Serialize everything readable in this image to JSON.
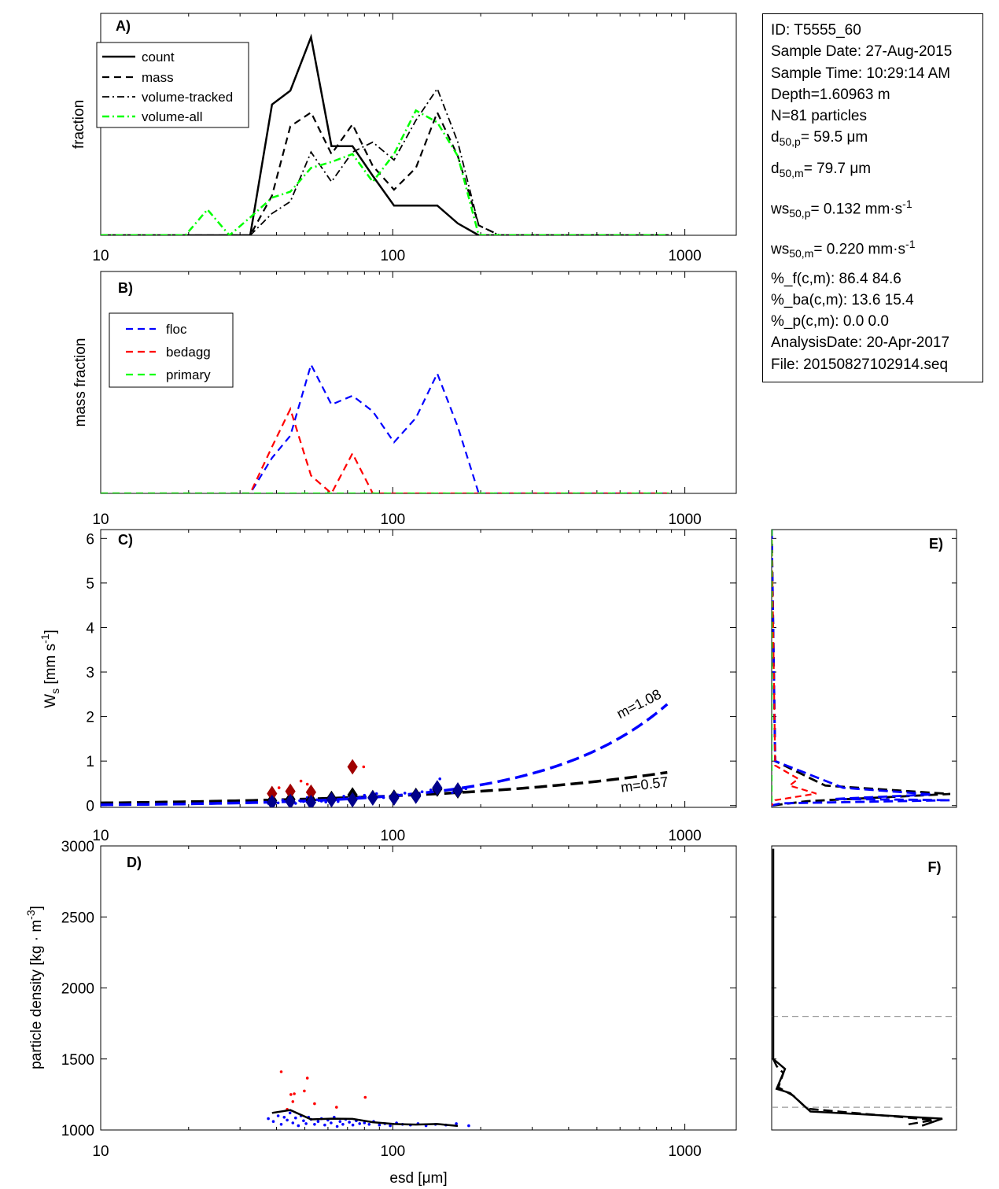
{
  "info": {
    "id": "ID: T5555_60",
    "sample_date": "Sample Date: 27-Aug-2015",
    "sample_time": "Sample Time: 10:29:14 AM",
    "depth": "Depth=1.60963 m",
    "n": "N=81 particles",
    "d50p_label": "d",
    "d50p_sub": "50,p",
    "d50p_value": "=  59.5 μm",
    "d50m_label": "d",
    "d50m_sub": "50,m",
    "d50m_value": "=  79.7 μm",
    "ws50p_label": "ws",
    "ws50p_sub": "50,p",
    "ws50p_value": "= 0.132 mm·s",
    "ws50p_exp": "-1",
    "ws50m_label": "ws",
    "ws50m_sub": "50,m",
    "ws50m_value": "= 0.220 mm·s",
    "ws50m_exp": "-1",
    "pf": "%_f(c,m): 86.4 84.6",
    "pba": "%_ba(c,m): 13.6 15.4",
    "pp": "%_p(c,m): 0.0 0.0",
    "analysis_date": "AnalysisDate: 20-Apr-2017",
    "file": "File: 20150827102914.seq"
  },
  "colors": {
    "count": "#000000",
    "floc": "#0000ff",
    "floc_dark": "#00008b",
    "bedagg": "#ff0000",
    "bedagg_dark": "#a00000",
    "primary": "#00ff00",
    "guide": "#999999"
  },
  "chart_data": [
    {
      "panel": "A)",
      "type": "line",
      "ylabel": "fraction",
      "xscale": "log",
      "xlim": [
        10,
        1500
      ],
      "ylim": [
        0,
        1
      ],
      "xticks": [
        "10",
        "100",
        "1000"
      ],
      "legend": {
        "position": "top-left",
        "entries": [
          "count",
          "mass",
          "volume-tracked",
          "volume-all"
        ]
      },
      "series": [
        {
          "name": "count",
          "style": "solid",
          "x": [
            10,
            19.5,
            23.2,
            27.6,
            32.5,
            38.6,
            44.6,
            52.5,
            61.7,
            72.8,
            85.4,
            101,
            120,
            142,
            167,
            197,
            232,
            880
          ],
          "y": [
            0,
            0,
            0,
            0,
            0,
            0.66,
            0.73,
            1.0,
            0.45,
            0.45,
            0.3,
            0.15,
            0.15,
            0.15,
            0.06,
            0,
            0,
            0
          ]
        },
        {
          "name": "mass",
          "style": "dashed",
          "x": [
            10,
            19.5,
            23.2,
            27.6,
            32.5,
            38.6,
            44.6,
            52.5,
            61.7,
            72.8,
            85.4,
            101,
            120,
            142,
            167,
            197,
            232,
            880
          ],
          "y": [
            0,
            0,
            0,
            0,
            0,
            0.2,
            0.55,
            0.62,
            0.41,
            0.56,
            0.35,
            0.23,
            0.34,
            0.62,
            0.4,
            0.05,
            0,
            0
          ]
        },
        {
          "name": "volume-tracked",
          "style": "dashdot",
          "x": [
            10,
            19.5,
            23.2,
            27.6,
            32.5,
            38.6,
            44.6,
            52.5,
            61.7,
            72.8,
            85.4,
            101,
            120,
            142,
            167,
            197,
            232,
            880
          ],
          "y": [
            0,
            0,
            0,
            0,
            0,
            0.11,
            0.17,
            0.42,
            0.27,
            0.42,
            0.47,
            0.38,
            0.58,
            0.74,
            0.47,
            0.05,
            0,
            0
          ]
        },
        {
          "name": "volume-all",
          "style": "dashdot",
          "x": [
            10,
            19.5,
            23.2,
            27.6,
            32.5,
            38.6,
            44.6,
            52.5,
            61.7,
            72.8,
            85.4,
            101,
            120,
            142,
            167,
            197,
            232,
            880
          ],
          "y": [
            0,
            0,
            0.13,
            0,
            0.09,
            0.19,
            0.22,
            0.34,
            0.37,
            0.41,
            0.27,
            0.41,
            0.63,
            0.57,
            0.4,
            0,
            0,
            0
          ]
        }
      ]
    },
    {
      "panel": "B)",
      "type": "line",
      "ylabel": "mass fraction",
      "xscale": "log",
      "xlim": [
        10,
        1500
      ],
      "ylim": [
        0,
        1
      ],
      "xticks": [
        "10",
        "100",
        "1000"
      ],
      "legend": {
        "position": "top-left",
        "entries": [
          "floc",
          "bedagg",
          "primary"
        ]
      },
      "series": [
        {
          "name": "floc",
          "x": [
            10,
            32.5,
            38.6,
            44.6,
            52.5,
            61.7,
            72.8,
            85.4,
            101,
            120,
            142,
            167,
            197,
            232,
            880
          ],
          "y": [
            0,
            0,
            0.16,
            0.26,
            0.58,
            0.4,
            0.44,
            0.37,
            0.23,
            0.34,
            0.54,
            0.3,
            0,
            0,
            0
          ]
        },
        {
          "name": "bedagg",
          "x": [
            10,
            32.5,
            38.6,
            44.6,
            52.5,
            61.7,
            72.8,
            85.4,
            101,
            880
          ],
          "y": [
            0,
            0,
            0.21,
            0.38,
            0.08,
            0,
            0.18,
            0,
            0,
            0
          ]
        },
        {
          "name": "primary",
          "x": [
            10,
            880
          ],
          "y": [
            0,
            0
          ]
        }
      ]
    },
    {
      "panel": "C)",
      "type": "scatter",
      "ylabel": "Ws [mm s-1]",
      "xscale": "log",
      "xlim": [
        10,
        1500
      ],
      "ylim": [
        0,
        6.2
      ],
      "yticks": [
        "0",
        "1",
        "2",
        "3",
        "4",
        "5",
        "6"
      ],
      "xticks": [
        "10",
        "100",
        "1000"
      ],
      "fits": [
        {
          "name": "floc fit",
          "label": "m=1.08",
          "a": 0.001521,
          "b": 1.08,
          "xrange": [
            10,
            880
          ]
        },
        {
          "name": "all fit",
          "label": "m=0.57",
          "a": 0.01573,
          "b": 0.57,
          "xrange": [
            10,
            880
          ]
        }
      ],
      "diamonds": {
        "floc": {
          "x": [
            38.6,
            44.6,
            52.5,
            61.7,
            72.8,
            85.4,
            101,
            120,
            142,
            167
          ],
          "y": [
            0.07,
            0.09,
            0.07,
            0.13,
            0.13,
            0.17,
            0.17,
            0.21,
            0.4,
            0.35
          ]
        },
        "bedagg": {
          "x": [
            38.6,
            44.6,
            52.5,
            72.8
          ],
          "y": [
            0.27,
            0.32,
            0.3,
            0.87
          ]
        },
        "all": {
          "x": [
            38.6,
            44.6,
            52.5,
            61.7,
            72.8,
            85.4,
            101,
            120,
            142,
            167
          ],
          "y": [
            0.11,
            0.14,
            0.12,
            0.16,
            0.24,
            0.18,
            0.19,
            0.23,
            0.37,
            0.33
          ]
        }
      },
      "points": {
        "floc": {
          "x": [
            37.5,
            39,
            40.5,
            42,
            43.5,
            45,
            46.5,
            48,
            49.5,
            51,
            53,
            55,
            57,
            59,
            61,
            63,
            65,
            68,
            71,
            74,
            77,
            80,
            84,
            88,
            93,
            98,
            104,
            110,
            118,
            126,
            135,
            145,
            160,
            178
          ],
          "y": [
            0.05,
            0.09,
            0.06,
            0.12,
            0.08,
            0.15,
            0.05,
            0.11,
            0.09,
            0.18,
            0.06,
            0.13,
            0.1,
            0.08,
            0.16,
            0.12,
            0.09,
            0.21,
            0.14,
            0.11,
            0.19,
            0.23,
            0.15,
            0.27,
            0.18,
            0.21,
            0.24,
            0.28,
            0.2,
            0.31,
            0.35,
            0.6,
            0.29,
            0.38
          ]
        },
        "bedagg": {
          "x": [
            40.8,
            44.2,
            48.5,
            51,
            79.5
          ],
          "y": [
            0.4,
            0.35,
            0.55,
            0.48,
            0.87
          ]
        }
      }
    },
    {
      "panel": "D)",
      "type": "scatter",
      "ylabel": "particle density [kg · m-3]",
      "xlabel": "esd [μm]",
      "xscale": "log",
      "xlim": [
        10,
        1500
      ],
      "ylim": [
        1000,
        3000
      ],
      "yticks": [
        "1000",
        "1500",
        "2000",
        "2500",
        "3000"
      ],
      "xticks": [
        "10",
        "100",
        "1000"
      ],
      "mean_line": {
        "x": [
          38.6,
          44.6,
          52.5,
          61.7,
          72.8,
          85.4,
          101,
          120,
          142,
          167
        ],
        "y": [
          1120,
          1140,
          1075,
          1080,
          1078,
          1055,
          1042,
          1038,
          1042,
          1028
        ]
      },
      "points": {
        "floc": {
          "x": [
            37.5,
            39,
            40.5,
            41.5,
            42.5,
            43.5,
            44.5,
            45.5,
            46.5,
            47.5,
            48.5,
            49.5,
            50.5,
            51.5,
            52.5,
            54,
            55.5,
            57,
            58.5,
            60,
            61.5,
            63,
            64.5,
            66,
            67.5,
            69,
            71,
            73,
            75,
            77,
            80,
            83,
            86,
            90,
            94,
            98,
            103,
            108,
            115,
            122,
            130,
            140,
            152,
            165,
            182
          ],
          "y": [
            1080,
            1060,
            1100,
            1040,
            1090,
            1070,
            1120,
            1050,
            1085,
            1030,
            1100,
            1065,
            1045,
            1090,
            1075,
            1040,
            1060,
            1080,
            1035,
            1070,
            1050,
            1090,
            1025,
            1060,
            1040,
            1075,
            1055,
            1035,
            1065,
            1045,
            1050,
            1040,
            1060,
            1035,
            1045,
            1030,
            1050,
            1040,
            1035,
            1045,
            1030,
            1040,
            1035,
            1045,
            1030
          ]
        },
        "bedagg": {
          "x": [
            41.5,
            44.8,
            45.5,
            49.8,
            51,
            46,
            64.2,
            80.5,
            54,
            43.5
          ],
          "y": [
            1410,
            1250,
            1200,
            1275,
            1365,
            1255,
            1160,
            1230,
            1185,
            1145
          ]
        }
      }
    },
    {
      "panel": "E)",
      "type": "line",
      "ylim": [
        0,
        6.2
      ],
      "note": "Ws distribution profile (shared y-axis with panel C)",
      "series": [
        {
          "name": "count",
          "x": [
            0,
            0.02,
            0.3,
            1.0,
            0.2,
            0
          ],
          "y": [
            6.2,
            1.0,
            0.45,
            0.26,
            0.1,
            0
          ]
        },
        {
          "name": "floc",
          "x": [
            0,
            0.02,
            0.4,
            0.9,
            0.35,
            1.0,
            0.05,
            0
          ],
          "y": [
            6.2,
            1.0,
            0.4,
            0.25,
            0.15,
            0.12,
            0.05,
            0
          ]
        },
        {
          "name": "bedagg",
          "x": [
            0,
            0.02,
            0.15,
            0.1,
            0.25,
            0.02,
            0
          ],
          "y": [
            6.2,
            0.9,
            0.6,
            0.45,
            0.27,
            0.12,
            0
          ]
        },
        {
          "name": "primary",
          "x": [
            0,
            0
          ],
          "y": [
            6.2,
            0
          ]
        }
      ]
    },
    {
      "panel": "F)",
      "type": "line",
      "ylim": [
        1000,
        3000
      ],
      "note": "density distribution profile (shared y-axis with panel D)",
      "reference_lines": [
        1800,
        1160
      ],
      "series": [
        {
          "name": "count",
          "x": [
            0,
            0,
            0.03,
            0.07,
            0.02,
            0.1,
            0.22,
            1.0,
            0.88
          ],
          "y": [
            2980,
            1500,
            1470,
            1430,
            1290,
            1260,
            1130,
            1080,
            1030
          ]
        },
        {
          "name": "mass",
          "x": [
            0,
            0.02,
            0.06,
            0.03,
            0.12,
            0.2,
            0.95,
            0.8
          ],
          "y": [
            1500,
            1450,
            1400,
            1300,
            1240,
            1150,
            1070,
            1040
          ]
        }
      ]
    }
  ]
}
